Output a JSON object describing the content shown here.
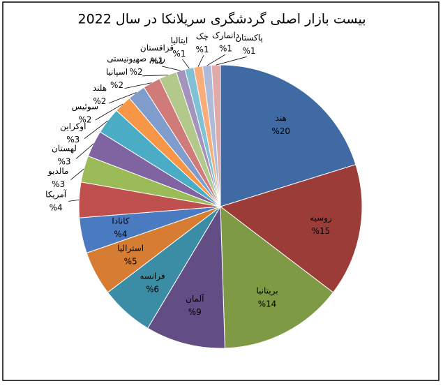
{
  "chart_data": {
    "type": "pie",
    "title": "بیست بازار اصلی گردشگری سریلانکا در سال 2022",
    "categories": [
      "هند",
      "روسیه",
      "بریتانیا",
      "آلمان",
      "فرانسه",
      "استرالیا",
      "کانادا",
      "آمریکا",
      "مالدیو",
      "لهستان",
      "اوکراین",
      "سوئیس",
      "هلند",
      "اسپانیا",
      "رژیم صهیونیستی",
      "قزاقستان",
      "ایتالیا",
      "چک",
      "دانمارک",
      "پاکستان"
    ],
    "values": [
      20,
      15,
      14,
      9,
      6,
      5,
      4,
      4,
      3,
      3,
      3,
      2,
      2,
      2,
      2,
      1,
      1,
      1,
      1,
      1
    ],
    "value_labels": [
      "%20",
      "%15",
      "%14",
      "%9",
      "%6",
      "%5",
      "%4",
      "%4",
      "%3",
      "%3",
      "%3",
      "%2",
      "%2",
      "%2",
      "%2",
      "%1",
      "%1",
      "%1",
      "%1",
      "%1"
    ],
    "colors": [
      "#3f6aa3",
      "#9c3c39",
      "#7e9a44",
      "#634d85",
      "#3a8da5",
      "#d67c33",
      "#4a7bc0",
      "#c0504d",
      "#9bbb59",
      "#8064a2",
      "#4bacc6",
      "#f79646",
      "#7f9ccd",
      "#d07b7a",
      "#b3c98c",
      "#a393bd",
      "#7fc2d6",
      "#f9ad7a",
      "#aebbd8",
      "#e0aaa9"
    ]
  }
}
